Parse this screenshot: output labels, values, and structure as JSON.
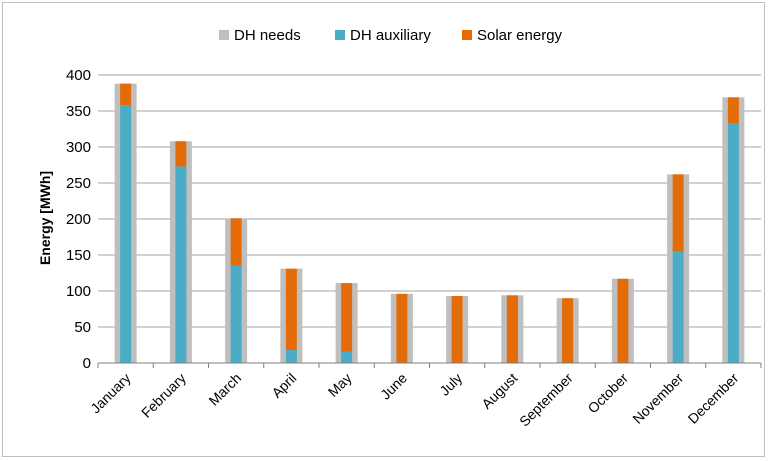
{
  "chart_data": {
    "type": "bar",
    "title": "",
    "xlabel": "",
    "ylabel": "Energy [MWh]",
    "ylim": [
      0,
      400
    ],
    "yticks": [
      0,
      50,
      100,
      150,
      200,
      250,
      300,
      350,
      400
    ],
    "grid": true,
    "legend_position": "top",
    "categories": [
      "January",
      "February",
      "March",
      "April",
      "May",
      "June",
      "July",
      "August",
      "September",
      "October",
      "November",
      "December"
    ],
    "series": [
      {
        "name": "DH needs",
        "color": "#bfbfbf",
        "values": [
          388,
          308,
          201,
          131,
          111,
          96,
          93,
          94,
          90,
          117,
          262,
          369
        ]
      },
      {
        "name": "DH auxiliary",
        "color": "#4bacc6",
        "values": [
          358,
          273,
          135,
          18,
          16,
          0,
          0,
          0,
          0,
          0,
          155,
          333
        ]
      },
      {
        "name": "Solar energy",
        "color": "#e36c09",
        "values": [
          30,
          35,
          66,
          113,
          95,
          96,
          93,
          94,
          90,
          117,
          107,
          36
        ]
      }
    ]
  }
}
